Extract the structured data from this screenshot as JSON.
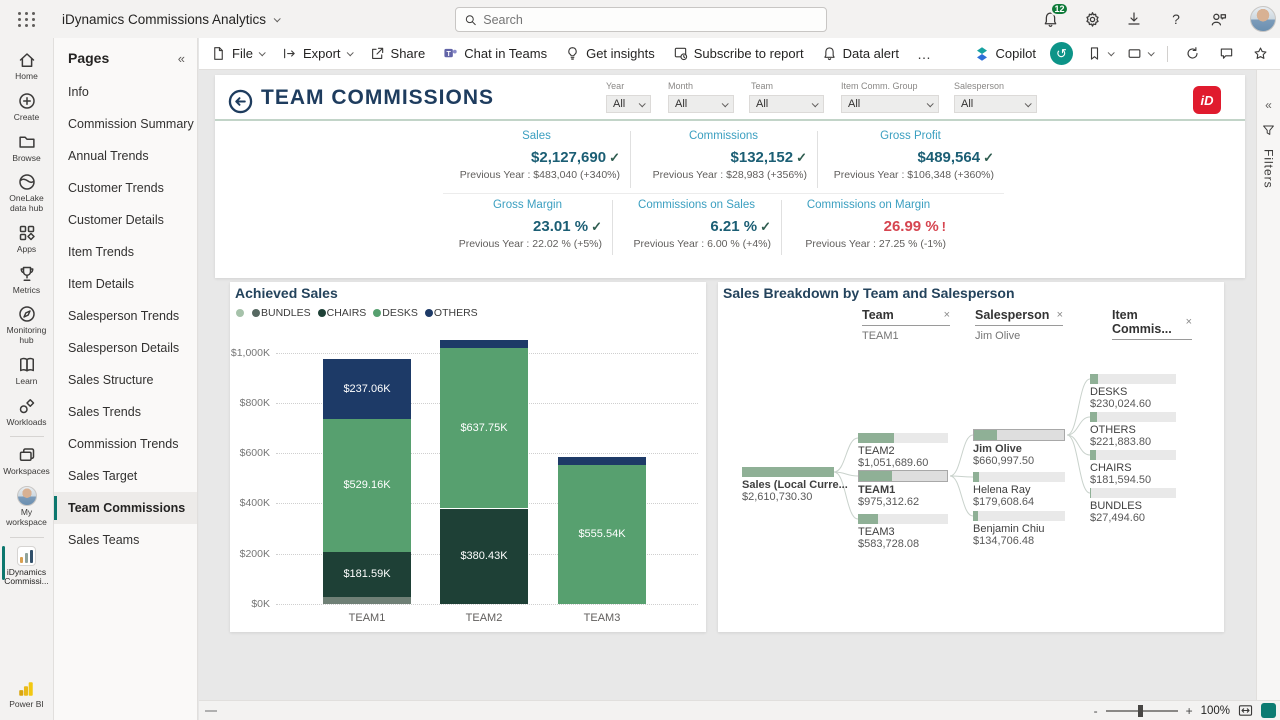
{
  "top_bar": {
    "app_title": "iDynamics Commissions Analytics",
    "search_placeholder": "Search",
    "notification_count": "12",
    "help_label": "?"
  },
  "rail": {
    "items": [
      "Home",
      "Create",
      "Browse",
      "OneLake data hub",
      "Apps",
      "Metrics",
      "Monitoring hub",
      "Learn",
      "Workloads",
      "Workspaces",
      "My workspace",
      "iDynamics Commissi...",
      "Power BI"
    ]
  },
  "pages_panel": {
    "title": "Pages",
    "collapse_glyph": "«",
    "items": [
      "Info",
      "Commission Summary",
      "Annual Trends",
      "Customer Trends",
      "Customer Details",
      "Item Trends",
      "Item Details",
      "Salesperson Trends",
      "Salesperson Details",
      "Sales Structure",
      "Sales Trends",
      "Commission Trends",
      "Sales Target",
      "Team Commissions",
      "Sales Teams"
    ],
    "active_item": "Team Commissions"
  },
  "toolbar": {
    "file": "File",
    "export": "Export",
    "share": "Share",
    "chat": "Chat in Teams",
    "insights": "Get insights",
    "subscribe": "Subscribe to report",
    "alert": "Data alert",
    "more": "…",
    "copilot": "Copilot",
    "reset_glyph": "↺"
  },
  "report": {
    "title": "TEAM COMMISSIONS",
    "logo_text": "iD",
    "filters": [
      {
        "label": "Year",
        "value": "All"
      },
      {
        "label": "Month",
        "value": "All"
      },
      {
        "label": "Team",
        "value": "All"
      },
      {
        "label": "Item Comm. Group",
        "value": "All"
      },
      {
        "label": "Salesperson",
        "value": "All"
      }
    ],
    "kpis": [
      {
        "title": "Sales",
        "value": "$2,127,690",
        "glyph": "✓",
        "status": "ok",
        "prev": "Previous Year : $483,040 (+340%)"
      },
      {
        "title": "Commissions",
        "value": "$132,152",
        "glyph": "✓",
        "status": "ok",
        "prev": "Previous Year : $28,983 (+356%)"
      },
      {
        "title": "Gross Profit",
        "value": "$489,564",
        "glyph": "✓",
        "status": "ok",
        "prev": "Previous Year : $106,348 (+360%)"
      },
      {
        "title": "Gross Margin",
        "value": "23.01 %",
        "glyph": "✓",
        "status": "ok",
        "prev": "Previous Year : 22.02 % (+5%)"
      },
      {
        "title": "Commissions on Sales",
        "value": "6.21 %",
        "glyph": "✓",
        "status": "ok",
        "prev": "Previous Year : 6.00 % (+4%)"
      },
      {
        "title": "Commissions on Margin",
        "value": "26.99 %",
        "glyph": "!",
        "status": "warn",
        "prev": "Previous Year : 27.25 % (-1%)"
      }
    ]
  },
  "chart_data": [
    {
      "type": "bar",
      "title": "Achieved Sales",
      "stacked": true,
      "categories": [
        "TEAM1",
        "TEAM2",
        "TEAM3"
      ],
      "value_unit": "thousand USD",
      "series": [
        {
          "name": "BUNDLES",
          "color": "#6f8076",
          "values": [
            27.49,
            0,
            0
          ],
          "labels": [
            "",
            "",
            ""
          ]
        },
        {
          "name": "CHAIRS",
          "color": "#1e4036",
          "values": [
            181.59,
            380.43,
            0
          ],
          "labels": [
            "$181.59K",
            "$380.43K",
            ""
          ]
        },
        {
          "name": "DESKS",
          "color": "#57a06f",
          "values": [
            529.16,
            637.75,
            555.54
          ],
          "labels": [
            "$529.16K",
            "$637.75K",
            "$555.54K"
          ]
        },
        {
          "name": "OTHERS",
          "color": "#1d3a67",
          "values": [
            237.06,
            33.51,
            28.19
          ],
          "labels": [
            "$237.06K",
            "",
            ""
          ]
        }
      ],
      "legend": [
        {
          "label": "",
          "color": "#a6c2aa"
        },
        {
          "label": "BUNDLES",
          "color": "#566861"
        },
        {
          "label": "CHAIRS",
          "color": "#1e4036"
        },
        {
          "label": "DESKS",
          "color": "#57a06f"
        },
        {
          "label": "OTHERS",
          "color": "#1d3a67"
        }
      ],
      "y_ticks": [
        "$1,000K",
        "$800K",
        "$600K",
        "$400K",
        "$200K",
        "$0K"
      ],
      "ylim": [
        0,
        1070
      ],
      "grid": "horizontal dotted",
      "legend_position": "top"
    },
    {
      "type": "decomposition-tree",
      "title": "Sales Breakdown by Team and Salesperson",
      "close_glyph": "×",
      "level_headers": [
        {
          "label": "Team",
          "selected": "TEAM1"
        },
        {
          "label": "Salesperson",
          "selected": "Jim Olive"
        },
        {
          "label": "Item Commis...",
          "selected": ""
        }
      ],
      "root": {
        "label": "Sales (Local Curre...",
        "value": 2610730.3,
        "value_text": "$2,610,730.30"
      },
      "teams": [
        {
          "label": "TEAM2",
          "value": 1051689.6,
          "value_text": "$1,051,689.60",
          "selected": false
        },
        {
          "label": "TEAM1",
          "value": 975312.62,
          "value_text": "$975,312.62",
          "selected": true
        },
        {
          "label": "TEAM3",
          "value": 583728.08,
          "value_text": "$583,728.08",
          "selected": false
        }
      ],
      "salespersons": [
        {
          "label": "Jim Olive",
          "value": 660997.5,
          "value_text": "$660,997.50",
          "selected": true
        },
        {
          "label": "Helena Ray",
          "value": 179608.64,
          "value_text": "$179,608.64",
          "selected": false
        },
        {
          "label": "Benjamin Chiu",
          "value": 134706.48,
          "value_text": "$134,706.48",
          "selected": false
        }
      ],
      "items": [
        {
          "label": "DESKS",
          "value": 230024.6,
          "value_text": "$230,024.60",
          "selected": false
        },
        {
          "label": "OTHERS",
          "value": 221883.8,
          "value_text": "$221,883.80",
          "selected": false
        },
        {
          "label": "CHAIRS",
          "value": 181594.5,
          "value_text": "$181,594.50",
          "selected": false
        },
        {
          "label": "BUNDLES",
          "value": 27494.6,
          "value_text": "$27,494.60",
          "selected": false
        }
      ]
    }
  ],
  "filters_pane": {
    "label": "Filters",
    "collapse_glyph": "«"
  },
  "status_bar": {
    "zoom_out": "-",
    "zoom_in": "+",
    "zoom_level": "100%"
  }
}
